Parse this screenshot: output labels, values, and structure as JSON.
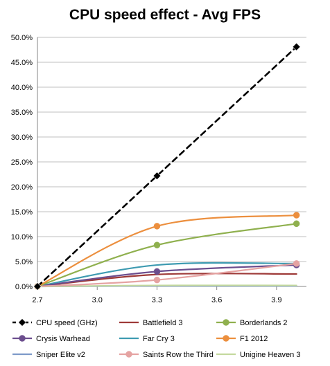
{
  "chart_data": {
    "type": "line",
    "title": "CPU speed effect - Avg FPS",
    "xlabel": "",
    "ylabel": "",
    "xlim": [
      2.7,
      4.05
    ],
    "ylim": [
      0,
      0.5
    ],
    "x_ticks": [
      2.7,
      3.0,
      3.3,
      3.6,
      3.9
    ],
    "x_tick_labels": [
      "2.7",
      "3.0",
      "3.3",
      "3.6",
      "3.9"
    ],
    "y_ticks": [
      0,
      0.05,
      0.1,
      0.15,
      0.2,
      0.25,
      0.3,
      0.35,
      0.4,
      0.45,
      0.5
    ],
    "y_tick_labels": [
      "0.0%",
      "5.0%",
      "10.0%",
      "15.0%",
      "20.0%",
      "25.0%",
      "30.0%",
      "35.0%",
      "40.0%",
      "45.0%",
      "50.0%"
    ],
    "grid": "horizontal",
    "legend_position": "bottom",
    "series": [
      {
        "name": "CPU speed (GHz)",
        "color": "#000000",
        "style": "dashed",
        "marker": "diamond",
        "x": [
          2.7,
          3.3,
          4.0
        ],
        "y": [
          0.0,
          0.222,
          0.481
        ]
      },
      {
        "name": "Battlefield 3",
        "color": "#9e3a38",
        "style": "solid",
        "marker": "none",
        "x": [
          2.7,
          3.3,
          4.0
        ],
        "y": [
          0.0,
          0.024,
          0.025
        ]
      },
      {
        "name": "Borderlands 2",
        "color": "#8fb04e",
        "style": "solid",
        "marker": "circle",
        "x": [
          2.7,
          3.3,
          4.0
        ],
        "y": [
          0.0,
          0.083,
          0.126
        ]
      },
      {
        "name": "Crysis Warhead",
        "color": "#6c4e8e",
        "style": "solid",
        "marker": "circle",
        "x": [
          2.7,
          3.3,
          4.0
        ],
        "y": [
          0.0,
          0.03,
          0.043
        ]
      },
      {
        "name": "Far Cry 3",
        "color": "#3e9bb1",
        "style": "solid",
        "marker": "none",
        "x": [
          2.7,
          3.3,
          4.0
        ],
        "y": [
          0.0,
          0.043,
          0.046
        ]
      },
      {
        "name": "F1 2012",
        "color": "#ec8f3e",
        "style": "solid",
        "marker": "circle",
        "x": [
          2.7,
          3.3,
          4.0
        ],
        "y": [
          0.0,
          0.121,
          0.143
        ]
      },
      {
        "name": "Sniper Elite v2",
        "color": "#7d9ac9",
        "style": "solid",
        "marker": "none",
        "x": [
          2.7,
          3.3,
          4.0
        ],
        "y": [
          0.0,
          0.001,
          0.001
        ]
      },
      {
        "name": "Saints Row the Third",
        "color": "#e5a3a2",
        "style": "solid",
        "marker": "circle",
        "x": [
          2.7,
          3.3,
          4.0
        ],
        "y": [
          0.0,
          0.013,
          0.046
        ]
      },
      {
        "name": "Unigine Heaven 3",
        "color": "#c4d99e",
        "style": "solid",
        "marker": "none",
        "x": [
          2.7,
          3.3,
          4.0
        ],
        "y": [
          0.0,
          0.002,
          0.002
        ]
      }
    ]
  }
}
